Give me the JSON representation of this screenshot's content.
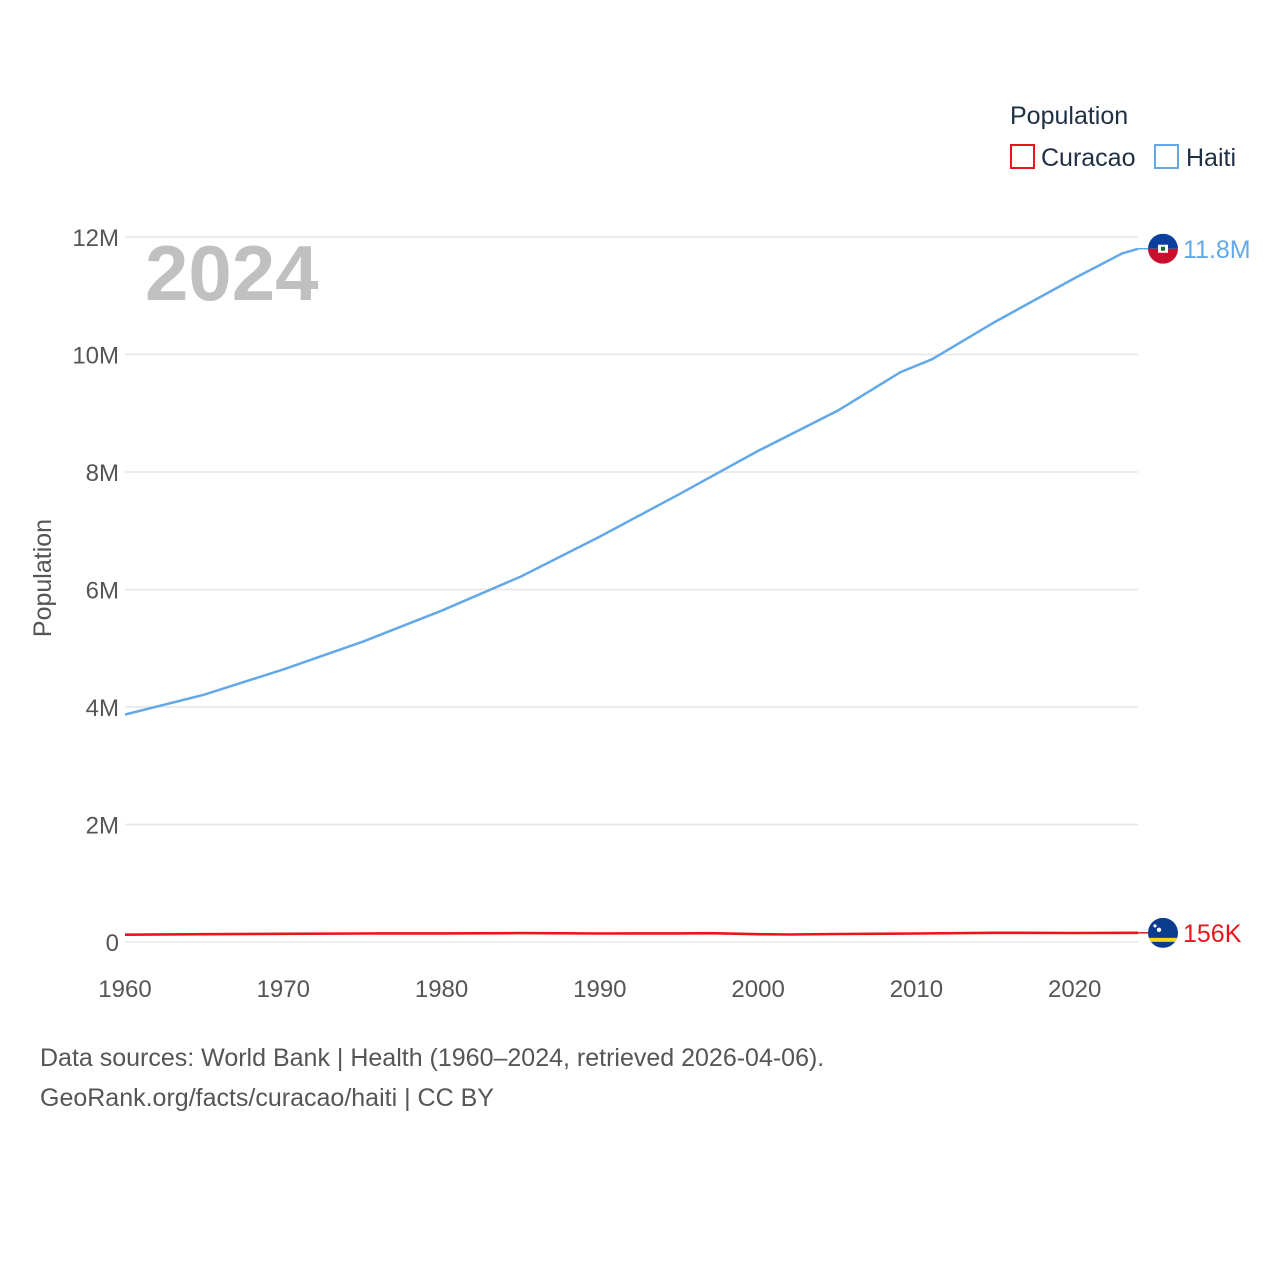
{
  "chart_data": {
    "type": "line",
    "title": "Population",
    "current_year_label": "2024",
    "ylabel": "Population",
    "xlim": [
      1960,
      2024
    ],
    "ylim": [
      0,
      12000000
    ],
    "y_ticks": [
      {
        "value": 0,
        "label": "0"
      },
      {
        "value": 2000000,
        "label": "2M"
      },
      {
        "value": 4000000,
        "label": "4M"
      },
      {
        "value": 6000000,
        "label": "6M"
      },
      {
        "value": 8000000,
        "label": "8M"
      },
      {
        "value": 10000000,
        "label": "10M"
      },
      {
        "value": 12000000,
        "label": "12M"
      }
    ],
    "x_ticks": [
      {
        "value": 1960,
        "label": "1960"
      },
      {
        "value": 1970,
        "label": "1970"
      },
      {
        "value": 1980,
        "label": "1980"
      },
      {
        "value": 1990,
        "label": "1990"
      },
      {
        "value": 2000,
        "label": "2000"
      },
      {
        "value": 2010,
        "label": "2010"
      },
      {
        "value": 2020,
        "label": "2020"
      }
    ],
    "legend": {
      "title": "Population",
      "placement": "top-right"
    },
    "series": [
      {
        "name": "Curacao",
        "color": "#e8161b",
        "end_label": "156K",
        "flag": "curacao-flag",
        "x": [
          1960,
          1965,
          1970,
          1975,
          1980,
          1985,
          1990,
          1995,
          1997,
          2000,
          2002,
          2005,
          2010,
          2015,
          2020,
          2024
        ],
        "values": [
          124000,
          133000,
          140000,
          145000,
          147000,
          151000,
          145000,
          146000,
          149000,
          133000,
          128000,
          137000,
          145000,
          157000,
          154000,
          156000
        ]
      },
      {
        "name": "Haiti",
        "color": "#63a8e8",
        "end_label": "11.8M",
        "flag": "haiti-flag",
        "x": [
          1960,
          1965,
          1970,
          1975,
          1980,
          1985,
          1990,
          1995,
          2000,
          2005,
          2009,
          2011,
          2015,
          2020,
          2023,
          2024
        ],
        "values": [
          3870000,
          4210000,
          4640000,
          5110000,
          5640000,
          6220000,
          6900000,
          7620000,
          8360000,
          9040000,
          9700000,
          9920000,
          10560000,
          11300000,
          11720000,
          11800000
        ]
      }
    ]
  },
  "footer": {
    "line1": "Data sources: World Bank | Health (1960–2024, retrieved 2026-04-06).",
    "line2": "GeoRank.org/facts/curacao/haiti | CC BY"
  }
}
